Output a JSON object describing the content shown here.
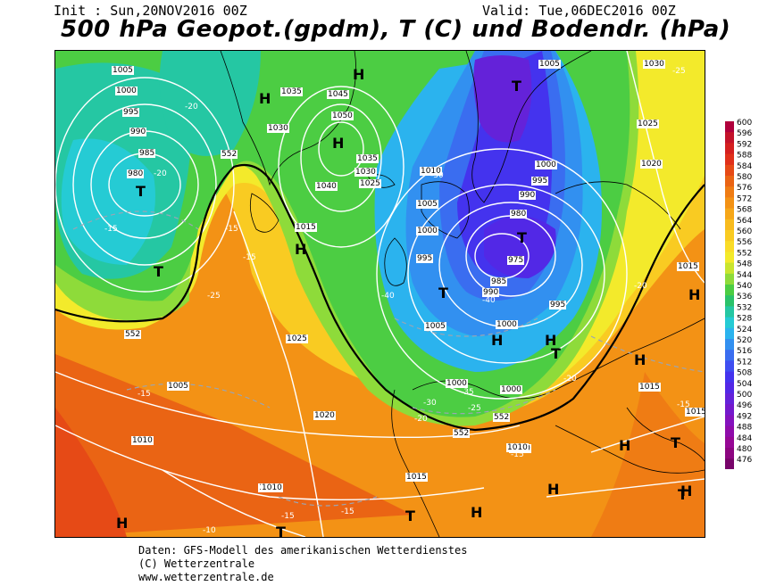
{
  "header": {
    "init": "Init : Sun,20NOV2016 00Z",
    "valid": "Valid: Tue,06DEC2016 00Z",
    "title": "500 hPa Geopot.(gpdm), T (C) und Bodendr. (hPa)"
  },
  "credits": {
    "line1": "Daten: GFS-Modell des amerikanischen Wetterdienstes",
    "line2": "(C) Wetterzentrale",
    "line3": "www.wetterzentrale.de"
  },
  "scale": {
    "labels": [
      "600",
      "596",
      "592",
      "588",
      "584",
      "580",
      "576",
      "572",
      "568",
      "564",
      "560",
      "556",
      "552",
      "548",
      "544",
      "540",
      "536",
      "532",
      "528",
      "524",
      "520",
      "516",
      "512",
      "508",
      "504",
      "500",
      "496",
      "492",
      "488",
      "484",
      "480",
      "476"
    ],
    "colors": [
      "#b0003c",
      "#c3122a",
      "#d41f1f",
      "#e0301a",
      "#e64a16",
      "#ea6414",
      "#ef7c14",
      "#f39215",
      "#f6a719",
      "#f8bb1e",
      "#f9cb22",
      "#fadc28",
      "#f3ea2b",
      "#c9e52f",
      "#8edb3a",
      "#4ccd43",
      "#2ac26a",
      "#25c7a3",
      "#25cbd4",
      "#2bb3ee",
      "#3290f0",
      "#3a6df0",
      "#3f4ef1",
      "#4433ee",
      "#5228e6",
      "#6422d9",
      "#7419cc",
      "#8412bd",
      "#8f0caa",
      "#960895",
      "#8c0680",
      "#78046a"
    ]
  },
  "map": {
    "pressure_labels": [
      "1005",
      "1000",
      "995",
      "990",
      "985",
      "980",
      "1035",
      "1045",
      "1050",
      "1030",
      "1035",
      "1030",
      "1025",
      "1040",
      "1015",
      "1010",
      "1005",
      "1000",
      "995",
      "1005",
      "1000",
      "995",
      "990",
      "980",
      "975",
      "985",
      "990",
      "995",
      "1000",
      "1000",
      "1005",
      "1030",
      "1025",
      "1020",
      "1015",
      "1000",
      "1025",
      "1020",
      "1005",
      "1010",
      "1010",
      "1015",
      "1010",
      "1015",
      "1015",
      "1010",
      "1010"
    ],
    "temp_labels": [
      "-25",
      "-20",
      "-20",
      "-15",
      "-15",
      "-15",
      "-30",
      "-40",
      "-40",
      "-35",
      "-30",
      "-25",
      "-20",
      "-20",
      "-20",
      "-15",
      "-15",
      "-15",
      "-15",
      "-10",
      "-25",
      "-15"
    ],
    "geopot_labels": [
      "552",
      "552",
      "552",
      "552"
    ],
    "highs": [
      "H",
      "H",
      "H",
      "H",
      "H",
      "H",
      "H",
      "H",
      "H",
      "H",
      "H",
      "H",
      "H"
    ],
    "lows": [
      "T",
      "T",
      "T",
      "T",
      "T",
      "T",
      "T",
      "T",
      "T",
      "T"
    ]
  }
}
